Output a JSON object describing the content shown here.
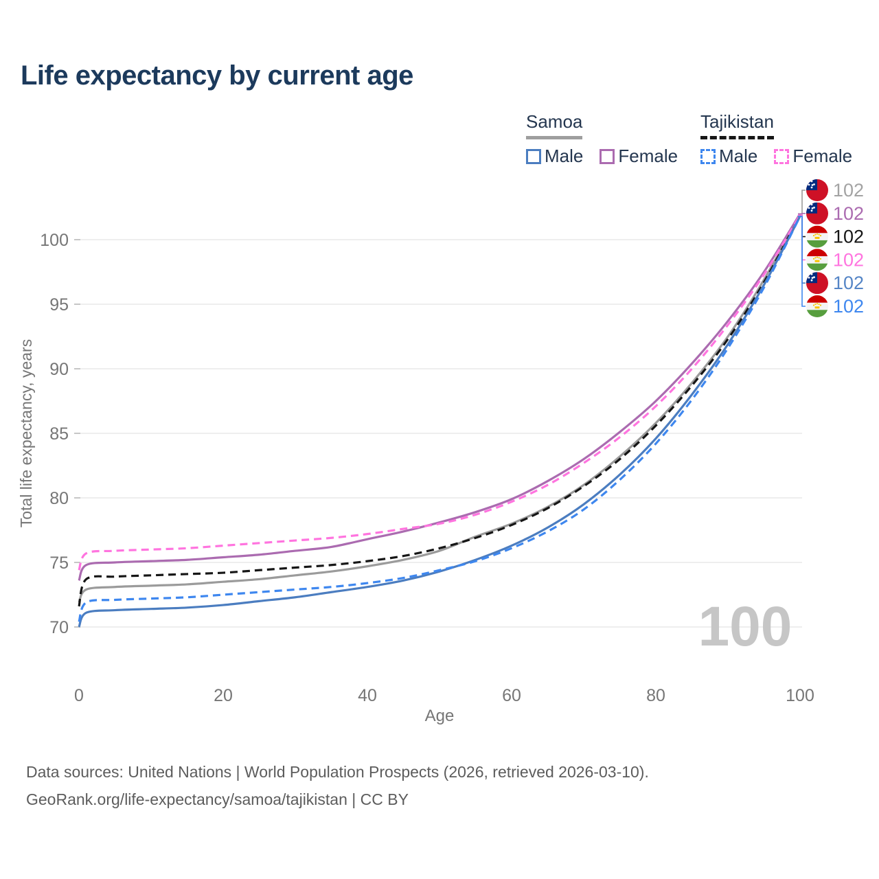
{
  "title": "Life expectancy by current age",
  "legend": {
    "samoa": {
      "label": "Samoa",
      "male": "Male",
      "female": "Female"
    },
    "tajikistan": {
      "label": "Tajikistan",
      "male": "Male",
      "female": "Female"
    }
  },
  "watermark": "100",
  "footer": {
    "line1": "Data sources: United Nations | World Population Prospects (2026, retrieved 2026-03-10).",
    "line2": "GeoRank.org/life-expectancy/samoa/tajikistan | CC BY"
  },
  "colors": {
    "title": "#1c3a5c",
    "axis_text": "#767676",
    "gridline": "#e8e8e8",
    "tick_stub": "#c6c6c6",
    "watermark": "#c6c6c6",
    "samoa_total": "#9b9b9b",
    "samoa_female": "#ab6bb0",
    "samoa_male": "#4b7dc0",
    "tajikistan_total": "#161616",
    "tajikistan_female": "#ff74df",
    "tajikistan_male": "#3e87ef"
  },
  "chart_data": {
    "type": "line",
    "title": "Life expectancy by current age",
    "xlabel": "Age",
    "ylabel": "Total life expectancy, years",
    "xlim": [
      0,
      100
    ],
    "ylim": [
      69,
      103
    ],
    "xticks": [
      0,
      20,
      40,
      60,
      80,
      100
    ],
    "yticks": [
      70,
      75,
      80,
      85,
      90,
      95,
      100
    ],
    "grid": "horizontal",
    "legend_position": "top-right",
    "ages": [
      0,
      1,
      5,
      10,
      15,
      20,
      25,
      30,
      35,
      40,
      45,
      50,
      55,
      60,
      65,
      70,
      75,
      80,
      85,
      90,
      95,
      100
    ],
    "series": [
      {
        "id": "samoa-total",
        "name": "Samoa Total",
        "country": "Samoa",
        "sex": "Total",
        "color": "#9b9b9b",
        "label_color": "#a3a3a3",
        "dash": false,
        "flag": "samoa",
        "label_row": 0,
        "end_label": "102",
        "values": [
          71.9,
          72.9,
          73.1,
          73.2,
          73.3,
          73.5,
          73.7,
          74.0,
          74.3,
          74.7,
          75.2,
          75.9,
          77.0,
          78.0,
          79.3,
          81.0,
          83.2,
          85.8,
          88.9,
          92.5,
          96.9,
          102.0
        ]
      },
      {
        "id": "tajikistan-total",
        "name": "Tajikistan Total",
        "country": "Tajikistan",
        "sex": "Total",
        "color": "#161616",
        "label_color": "#161616",
        "dash": true,
        "flag": "tajikistan",
        "label_row": 2,
        "end_label": "102",
        "values": [
          71.6,
          73.7,
          73.9,
          74.0,
          74.1,
          74.2,
          74.4,
          74.6,
          74.8,
          75.1,
          75.5,
          76.1,
          76.9,
          77.9,
          79.2,
          80.9,
          83.0,
          85.6,
          88.7,
          92.3,
          96.7,
          101.9
        ]
      },
      {
        "id": "samoa-female",
        "name": "Samoa Female",
        "country": "Samoa",
        "sex": "Female",
        "color": "#ab6bb0",
        "label_color": "#ab6bb0",
        "dash": false,
        "flag": "samoa",
        "label_row": 1,
        "end_label": "102",
        "values": [
          73.6,
          74.8,
          75.0,
          75.1,
          75.2,
          75.4,
          75.6,
          75.9,
          76.2,
          76.8,
          77.4,
          78.1,
          78.9,
          79.9,
          81.3,
          83.0,
          85.1,
          87.5,
          90.4,
          93.7,
          97.5,
          102.0
        ]
      },
      {
        "id": "tajikistan-female",
        "name": "Tajikistan Female",
        "country": "Tajikistan",
        "sex": "Female",
        "color": "#ff74df",
        "label_color": "#ff74df",
        "dash": true,
        "flag": "tajikistan",
        "label_row": 3,
        "end_label": "102",
        "values": [
          74.4,
          75.7,
          75.9,
          76.0,
          76.1,
          76.3,
          76.5,
          76.7,
          76.9,
          77.2,
          77.6,
          78.0,
          78.7,
          79.7,
          81.0,
          82.7,
          84.7,
          87.1,
          90.0,
          93.4,
          97.3,
          101.9
        ]
      },
      {
        "id": "samoa-male",
        "name": "Samoa Male",
        "country": "Samoa",
        "sex": "Male",
        "color": "#4b7dc0",
        "label_color": "#5585c6",
        "dash": false,
        "flag": "samoa",
        "label_row": 4,
        "end_label": "102",
        "values": [
          70.0,
          71.1,
          71.3,
          71.4,
          71.5,
          71.7,
          72.0,
          72.3,
          72.7,
          73.1,
          73.6,
          74.3,
          75.2,
          76.3,
          77.7,
          79.5,
          81.8,
          84.6,
          88.0,
          91.9,
          96.5,
          101.8
        ]
      },
      {
        "id": "tajikistan-male",
        "name": "Tajikistan Male",
        "country": "Tajikistan",
        "sex": "Male",
        "color": "#3e87ef",
        "label_color": "#3e87ef",
        "dash": true,
        "flag": "tajikistan",
        "label_row": 5,
        "end_label": "102",
        "values": [
          70.4,
          71.9,
          72.1,
          72.2,
          72.3,
          72.5,
          72.7,
          72.9,
          73.1,
          73.4,
          73.8,
          74.4,
          75.1,
          76.1,
          77.4,
          79.1,
          81.4,
          84.2,
          87.6,
          91.6,
          96.3,
          101.8
        ]
      }
    ]
  }
}
